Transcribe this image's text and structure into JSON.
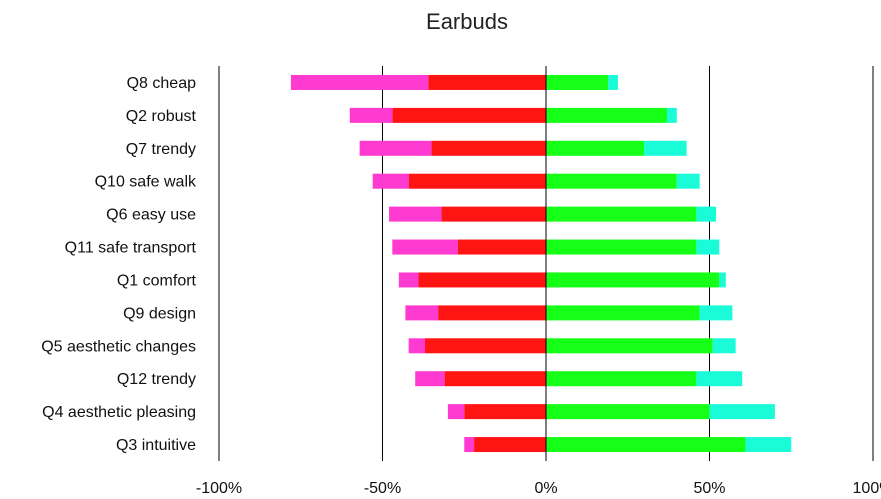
{
  "chart_data": {
    "type": "bar",
    "title": "Earbuds",
    "xlim": [
      -100,
      100
    ],
    "x_ticks": [
      -100,
      -50,
      0,
      50,
      100
    ],
    "x_tick_labels": [
      "-100%",
      "-50%",
      "0%",
      "50%",
      "100%"
    ],
    "categories": [
      "Q8 cheap",
      "Q2 robust",
      "Q7 trendy",
      "Q10 safe walk",
      "Q6 easy use",
      "Q11 safe transport",
      "Q1 comfort",
      "Q9 design",
      "Q5 aesthetic changes",
      "Q12 trendy",
      "Q4 aesthetic pleasing",
      "Q3 intuitive"
    ],
    "series": [
      {
        "color": "#ff3ad0",
        "values": [
          -42,
          -13,
          -22,
          -11,
          -16,
          -20,
          -6,
          -10,
          -5,
          -9,
          -5,
          -3
        ]
      },
      {
        "color": "#ff1414",
        "values": [
          -36,
          -47,
          -35,
          -42,
          -32,
          -27,
          -39,
          -33,
          -37,
          -31,
          -25,
          -22
        ]
      },
      {
        "color": "#16ff16",
        "values": [
          19,
          37,
          30,
          40,
          46,
          46,
          53,
          47,
          51,
          46,
          50,
          61
        ]
      },
      {
        "color": "#1afcd8",
        "values": [
          3,
          3,
          13,
          7,
          6,
          7,
          2,
          10,
          7,
          14,
          20,
          14
        ]
      }
    ],
    "grid": "vertical lines at -50%, 0%, 50%",
    "legend": "none"
  }
}
